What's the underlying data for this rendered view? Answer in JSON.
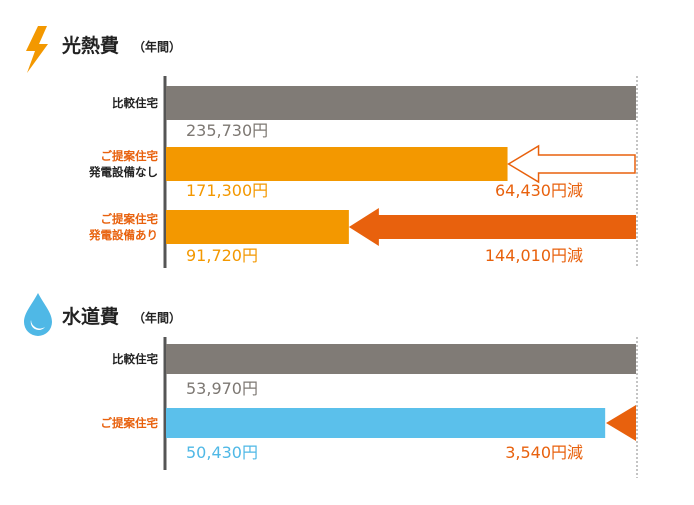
{
  "chart_data": [
    {
      "type": "bar",
      "orientation": "horizontal",
      "title": "光熱費",
      "subtitle": "（年間）",
      "icon": "lightning-bolt-icon",
      "xlim": [
        0,
        235730
      ],
      "bars": [
        {
          "label_lines": [
            "比較住宅"
          ],
          "label_colors": [
            "#222222"
          ],
          "value": 235730,
          "value_label": "235,730円",
          "color": "#807b76",
          "value_color": "#7d7873",
          "reduction": null
        },
        {
          "label_lines": [
            "ご提案住宅",
            "発電設備なし"
          ],
          "label_colors": [
            "#e8610d",
            "#222222"
          ],
          "value": 171300,
          "value_label": "171,300円",
          "color": "#f39800",
          "value_color": "#f39800",
          "reduction": {
            "value": 64430,
            "label": "64,430円減",
            "style": "outline"
          }
        },
        {
          "label_lines": [
            "ご提案住宅",
            "発電設備あり"
          ],
          "label_colors": [
            "#e8610d",
            "#e8610d"
          ],
          "value": 91720,
          "value_label": "91,720円",
          "color": "#f39800",
          "value_color": "#f39800",
          "reduction": {
            "value": 144010,
            "label": "144,010円減",
            "style": "solid"
          }
        }
      ]
    },
    {
      "type": "bar",
      "orientation": "horizontal",
      "title": "水道費",
      "subtitle": "（年間）",
      "icon": "water-drop-icon",
      "xlim": [
        0,
        53970
      ],
      "bars": [
        {
          "label_lines": [
            "比較住宅"
          ],
          "label_colors": [
            "#222222"
          ],
          "value": 53970,
          "value_label": "53,970円",
          "color": "#807b76",
          "value_color": "#7d7873",
          "reduction": null
        },
        {
          "label_lines": [
            "ご提案住宅"
          ],
          "label_colors": [
            "#e8610d"
          ],
          "value": 50430,
          "value_label": "50,430円",
          "color": "#5bc0eb",
          "value_color": "#4fb8e6",
          "reduction": {
            "value": 3540,
            "label": "3,540円減",
            "style": "solid"
          }
        }
      ]
    }
  ],
  "colors": {
    "reduction": "#e8610d",
    "bolt": "#f39800",
    "drop": "#4fb8e6",
    "axis": "#555555",
    "dotted_line": "#888888"
  }
}
